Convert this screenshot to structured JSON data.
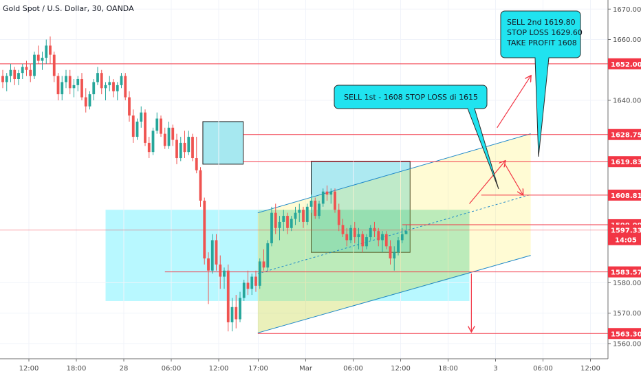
{
  "chart_data": {
    "type": "candlestick",
    "instrument_label": "Gold Spot / U.S. Dollar, 30, OANDA",
    "ylim": [
      1555,
      1673
    ],
    "price_ticks": [
      1560,
      1570,
      1580,
      1640,
      1660,
      1670
    ],
    "time_ticks": [
      {
        "label": "12:00",
        "i": 0
      },
      {
        "label": "18:00",
        "i": 12
      },
      {
        "label": "28",
        "i": 24
      },
      {
        "label": "06:00",
        "i": 36
      },
      {
        "label": "12:00",
        "i": 48
      },
      {
        "label": "17:00",
        "i": 58
      },
      {
        "label": "Mar",
        "i": 70
      },
      {
        "label": "06:00",
        "i": 82
      },
      {
        "label": "12:00",
        "i": 94
      },
      {
        "label": "18:00",
        "i": 106
      },
      {
        "label": "3",
        "i": 118
      },
      {
        "label": "06:00",
        "i": 130
      },
      {
        "label": "12:00",
        "i": 142
      }
    ],
    "horizontal_levels": [
      {
        "price": 1652.008,
        "label": "1652.008"
      },
      {
        "price": 1628.753,
        "label": "1628.753"
      },
      {
        "price": 1619.832,
        "label": "1619.832"
      },
      {
        "price": 1608.819,
        "label": "1608.819"
      },
      {
        "price": 1599.091,
        "label": "1599.091"
      },
      {
        "price": 1583.57,
        "label": "1583.570"
      },
      {
        "price": 1563.304,
        "label": "1563.304"
      }
    ],
    "current_price": {
      "value": 1597.338,
      "label": "1597.338",
      "countdown": "14:05"
    },
    "annotations": [
      {
        "name": "sell-1st-callout",
        "lines": [
          "SELL 1st - 1608 STOP LOSS di  1615"
        ]
      },
      {
        "name": "sell-2nd-callout",
        "lines": [
          "SELL 2nd 1619.80",
          "STOP LOSS 1629.60",
          "TAKE PROFIT 1608"
        ]
      }
    ],
    "candles": [
      [
        1648,
        1650,
        1644,
        1646
      ],
      [
        1646,
        1649,
        1643,
        1648
      ],
      [
        1648,
        1652,
        1646,
        1650
      ],
      [
        1650,
        1651,
        1645,
        1647
      ],
      [
        1647,
        1650,
        1645,
        1649
      ],
      [
        1649,
        1652,
        1647,
        1651
      ],
      [
        1651,
        1653,
        1648,
        1650
      ],
      [
        1650,
        1652,
        1646,
        1648
      ],
      [
        1648,
        1656,
        1647,
        1655
      ],
      [
        1655,
        1658,
        1652,
        1653
      ],
      [
        1653,
        1656,
        1650,
        1654
      ],
      [
        1654,
        1660,
        1652,
        1658
      ],
      [
        1658,
        1661,
        1652,
        1655
      ],
      [
        1655,
        1656,
        1646,
        1648
      ],
      [
        1648,
        1649,
        1640,
        1642
      ],
      [
        1642,
        1648,
        1640,
        1646
      ],
      [
        1646,
        1650,
        1644,
        1648
      ],
      [
        1648,
        1650,
        1642,
        1644
      ],
      [
        1644,
        1647,
        1641,
        1645
      ],
      [
        1645,
        1648,
        1643,
        1647
      ],
      [
        1647,
        1649,
        1640,
        1641
      ],
      [
        1641,
        1644,
        1636,
        1638
      ],
      [
        1638,
        1643,
        1637,
        1642
      ],
      [
        1642,
        1647,
        1640,
        1646
      ],
      [
        1646,
        1651,
        1645,
        1649
      ],
      [
        1649,
        1650,
        1642,
        1644
      ],
      [
        1644,
        1646,
        1640,
        1645
      ],
      [
        1645,
        1648,
        1643,
        1646
      ],
      [
        1646,
        1647,
        1641,
        1643
      ],
      [
        1643,
        1646,
        1640,
        1645
      ],
      [
        1645,
        1649,
        1644,
        1648
      ],
      [
        1648,
        1649,
        1640,
        1641
      ],
      [
        1641,
        1643,
        1633,
        1635
      ],
      [
        1635,
        1637,
        1626,
        1628
      ],
      [
        1628,
        1634,
        1627,
        1633
      ],
      [
        1633,
        1638,
        1631,
        1636
      ],
      [
        1636,
        1637,
        1625,
        1626
      ],
      [
        1626,
        1628,
        1621,
        1623
      ],
      [
        1623,
        1631,
        1622,
        1630
      ],
      [
        1630,
        1636,
        1629,
        1634
      ],
      [
        1634,
        1635,
        1628,
        1629
      ],
      [
        1629,
        1631,
        1624,
        1625
      ],
      [
        1625,
        1633,
        1624,
        1631
      ],
      [
        1631,
        1632,
        1625,
        1627
      ],
      [
        1627,
        1629,
        1619,
        1621
      ],
      [
        1621,
        1628,
        1620,
        1626
      ],
      [
        1626,
        1630,
        1621,
        1623
      ],
      [
        1623,
        1630,
        1622,
        1628
      ],
      [
        1628,
        1629,
        1620,
        1621
      ],
      [
        1621,
        1628,
        1616,
        1617
      ],
      [
        1617,
        1618,
        1605,
        1607
      ],
      [
        1607,
        1608,
        1586,
        1588
      ],
      [
        1588,
        1590,
        1573,
        1584
      ],
      [
        1584,
        1596,
        1583,
        1594
      ],
      [
        1594,
        1596,
        1584,
        1586
      ],
      [
        1586,
        1589,
        1578,
        1582
      ],
      [
        1582,
        1585,
        1578,
        1584
      ],
      [
        1584,
        1586,
        1564,
        1567
      ],
      [
        1567,
        1575,
        1564,
        1572
      ],
      [
        1572,
        1576,
        1565,
        1568
      ],
      [
        1568,
        1577,
        1567,
        1575
      ],
      [
        1575,
        1581,
        1574,
        1580
      ],
      [
        1580,
        1584,
        1576,
        1578
      ],
      [
        1578,
        1583,
        1576,
        1582
      ],
      [
        1582,
        1584,
        1577,
        1579
      ],
      [
        1579,
        1588,
        1578,
        1587
      ],
      [
        1587,
        1591,
        1584,
        1585
      ],
      [
        1585,
        1594,
        1584,
        1593
      ],
      [
        1593,
        1605,
        1592,
        1603
      ],
      [
        1603,
        1606,
        1596,
        1598
      ],
      [
        1598,
        1602,
        1594,
        1600
      ],
      [
        1600,
        1604,
        1597,
        1602
      ],
      [
        1602,
        1603,
        1596,
        1598
      ],
      [
        1598,
        1602,
        1597,
        1601
      ],
      [
        1601,
        1605,
        1599,
        1603
      ],
      [
        1603,
        1606,
        1600,
        1604
      ],
      [
        1604,
        1605,
        1598,
        1600
      ],
      [
        1600,
        1606,
        1599,
        1605
      ],
      [
        1605,
        1609,
        1603,
        1607
      ],
      [
        1607,
        1608,
        1601,
        1602
      ],
      [
        1602,
        1607,
        1601,
        1606
      ],
      [
        1606,
        1611,
        1605,
        1610
      ],
      [
        1610,
        1612,
        1607,
        1609
      ],
      [
        1609,
        1611,
        1606,
        1610
      ],
      [
        1610,
        1611,
        1603,
        1604
      ],
      [
        1604,
        1606,
        1597,
        1599
      ],
      [
        1599,
        1601,
        1595,
        1596
      ],
      [
        1596,
        1598,
        1592,
        1594
      ],
      [
        1594,
        1599,
        1593,
        1598
      ],
      [
        1598,
        1600,
        1593,
        1595
      ],
      [
        1595,
        1598,
        1591,
        1596
      ],
      [
        1596,
        1597,
        1590,
        1592
      ],
      [
        1592,
        1596,
        1591,
        1595
      ],
      [
        1595,
        1599,
        1594,
        1598
      ],
      [
        1598,
        1600,
        1595,
        1597
      ],
      [
        1597,
        1598,
        1592,
        1594
      ],
      [
        1594,
        1597,
        1590,
        1596
      ],
      [
        1596,
        1597,
        1591,
        1592
      ],
      [
        1592,
        1594,
        1586,
        1588
      ],
      [
        1588,
        1592,
        1584,
        1590
      ],
      [
        1590,
        1595,
        1589,
        1594
      ],
      [
        1594,
        1598,
        1593,
        1596
      ],
      [
        1596,
        1599,
        1596,
        1597
      ]
    ]
  }
}
